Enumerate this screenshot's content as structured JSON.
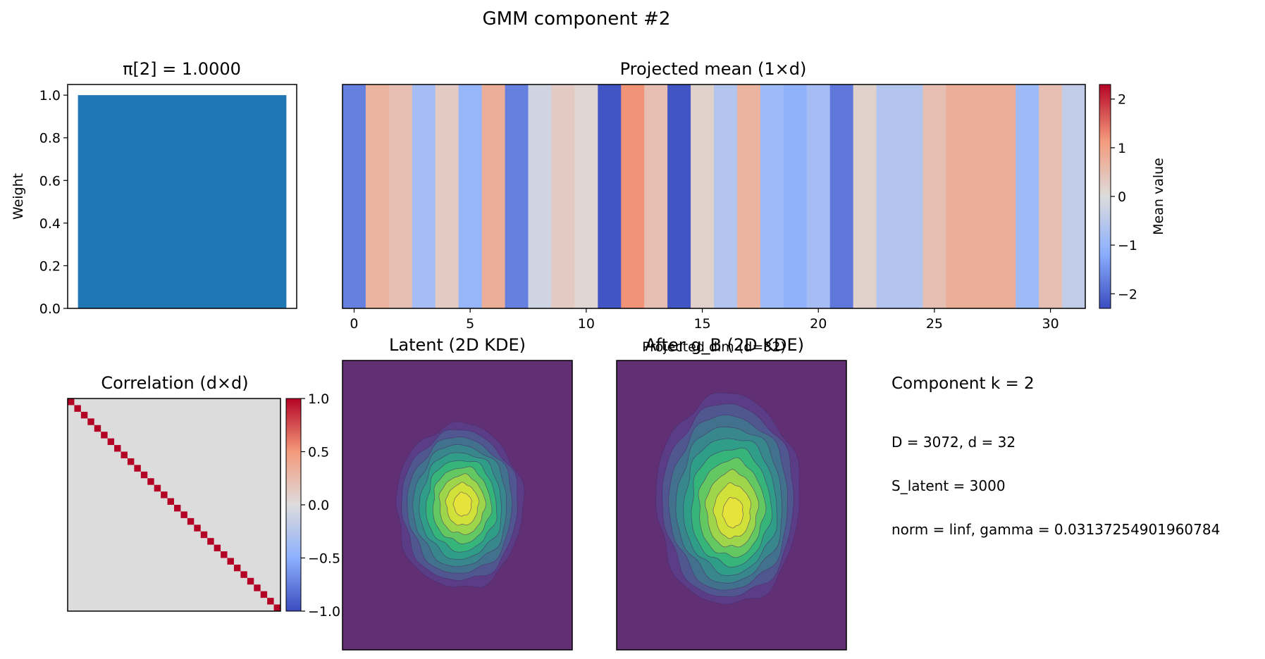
{
  "suptitle": "GMM component #2",
  "weight_panel": {
    "title": "π[2] = 1.0000",
    "ylabel": "Weight",
    "yticks": [
      "0.0",
      "0.2",
      "0.4",
      "0.6",
      "0.8",
      "1.0"
    ]
  },
  "mean_panel": {
    "title": "Projected mean (1×d)",
    "xlabel": "Projected dim (d=32)",
    "xticks": [
      "0",
      "5",
      "10",
      "15",
      "20",
      "25",
      "30"
    ],
    "colorbar_label": "Mean value",
    "colorbar_ticks": [
      "2",
      "1",
      "0",
      "−1",
      "−2"
    ]
  },
  "corr_panel": {
    "title": "Correlation (d×d)",
    "colorbar_ticks": [
      "1.0",
      "0.5",
      "0.0",
      "−0.5",
      "−1.0"
    ]
  },
  "latent_panel": {
    "title": "Latent (2D KDE)"
  },
  "after_panel": {
    "title": "After g_B (2D KDE)"
  },
  "info": {
    "line1": "Component k = 2",
    "line2": "D = 3072, d = 32",
    "line3": "S_latent = 3000",
    "line4": "norm = linf, gamma = 0.03137254901960784"
  },
  "colors": {
    "bar": "#1f77b4",
    "kde_background": "#612f74",
    "corr_diagonal": "#b40426",
    "corr_offdiag": "#dddcdc"
  },
  "chart_data": [
    {
      "type": "bar",
      "title": "π[2] = 1.0000",
      "ylabel": "Weight",
      "categories": [
        ""
      ],
      "values": [
        1.0
      ],
      "ylim": [
        0,
        1.05
      ]
    },
    {
      "type": "heatmap",
      "title": "Projected mean (1×d)",
      "xlabel": "Projected dim (d=32)",
      "colormap": "coolwarm",
      "colorbar_label": "Mean value",
      "vlim": [
        -2.3,
        2.3
      ],
      "x": [
        0,
        1,
        2,
        3,
        4,
        5,
        6,
        7,
        8,
        9,
        10,
        11,
        12,
        13,
        14,
        15,
        16,
        17,
        18,
        19,
        20,
        21,
        22,
        23,
        24,
        25,
        26,
        27,
        28,
        29,
        30,
        31
      ],
      "values": [
        -1.7,
        0.7,
        0.5,
        -0.8,
        0.3,
        -1.0,
        0.8,
        -1.7,
        -0.2,
        0.3,
        0.1,
        -2.2,
        1.2,
        0.5,
        -2.2,
        0.2,
        -0.6,
        0.7,
        -0.9,
        -1.1,
        -0.8,
        -1.8,
        0.2,
        -0.6,
        -0.6,
        0.5,
        0.8,
        0.8,
        0.8,
        -0.9,
        0.5,
        -0.4
      ]
    },
    {
      "type": "heatmap",
      "title": "Correlation (d×d)",
      "colormap": "coolwarm",
      "vlim": [
        -1.0,
        1.0
      ],
      "size": 32,
      "diagonal_value": 1.0,
      "offdiagonal_value": 0.0
    },
    {
      "type": "heatmap",
      "title": "Latent (2D KDE)",
      "colormap": "viridis",
      "levels": 10
    },
    {
      "type": "heatmap",
      "title": "After g_B (2D KDE)",
      "colormap": "viridis",
      "levels": 10
    }
  ]
}
